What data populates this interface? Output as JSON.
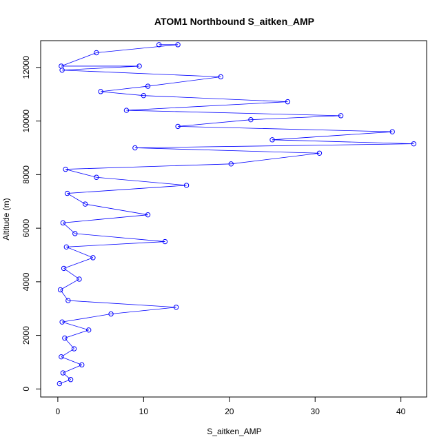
{
  "chart_data": {
    "type": "scatter",
    "title": "ATOM1 Northbound S_aitken_AMP",
    "xlabel": "S_aitken_AMP",
    "ylabel": "Altitude (m)",
    "xlim": [
      -2,
      43
    ],
    "ylim": [
      -300,
      13000
    ],
    "xticks": [
      0,
      10,
      20,
      30,
      40
    ],
    "yticks": [
      0,
      2000,
      4000,
      6000,
      8000,
      10000,
      12000
    ],
    "grid": false,
    "legend": "none",
    "marker": "open-circle",
    "connect_points": true,
    "colors": {
      "series": "#0000ff",
      "axis": "#000000"
    },
    "series": [
      {
        "values": [
          {
            "x": 0.2,
            "y": 200
          },
          {
            "x": 1.5,
            "y": 350
          },
          {
            "x": 0.6,
            "y": 600
          },
          {
            "x": 2.8,
            "y": 900
          },
          {
            "x": 0.4,
            "y": 1200
          },
          {
            "x": 1.9,
            "y": 1500
          },
          {
            "x": 0.8,
            "y": 1900
          },
          {
            "x": 3.6,
            "y": 2200
          },
          {
            "x": 0.5,
            "y": 2500
          },
          {
            "x": 6.2,
            "y": 2800
          },
          {
            "x": 13.8,
            "y": 3050
          },
          {
            "x": 1.2,
            "y": 3300
          },
          {
            "x": 0.3,
            "y": 3700
          },
          {
            "x": 2.5,
            "y": 4100
          },
          {
            "x": 0.7,
            "y": 4500
          },
          {
            "x": 4.1,
            "y": 4900
          },
          {
            "x": 1.0,
            "y": 5300
          },
          {
            "x": 12.5,
            "y": 5500
          },
          {
            "x": 2.0,
            "y": 5800
          },
          {
            "x": 0.6,
            "y": 6200
          },
          {
            "x": 10.5,
            "y": 6500
          },
          {
            "x": 3.2,
            "y": 6900
          },
          {
            "x": 1.1,
            "y": 7300
          },
          {
            "x": 15.0,
            "y": 7600
          },
          {
            "x": 4.5,
            "y": 7900
          },
          {
            "x": 0.9,
            "y": 8200
          },
          {
            "x": 20.2,
            "y": 8400
          },
          {
            "x": 30.5,
            "y": 8800
          },
          {
            "x": 9.0,
            "y": 9000
          },
          {
            "x": 41.5,
            "y": 9150
          },
          {
            "x": 25.0,
            "y": 9300
          },
          {
            "x": 39.0,
            "y": 9600
          },
          {
            "x": 14.0,
            "y": 9800
          },
          {
            "x": 22.5,
            "y": 10050
          },
          {
            "x": 33.0,
            "y": 10200
          },
          {
            "x": 8.0,
            "y": 10400
          },
          {
            "x": 26.8,
            "y": 10720
          },
          {
            "x": 10.0,
            "y": 10950
          },
          {
            "x": 5.0,
            "y": 11100
          },
          {
            "x": 10.5,
            "y": 11300
          },
          {
            "x": 19.0,
            "y": 11650
          },
          {
            "x": 0.5,
            "y": 11900
          },
          {
            "x": 9.5,
            "y": 12050
          },
          {
            "x": 0.4,
            "y": 12050
          },
          {
            "x": 4.5,
            "y": 12550
          },
          {
            "x": 14.0,
            "y": 12850
          },
          {
            "x": 11.8,
            "y": 12850
          }
        ]
      }
    ]
  }
}
